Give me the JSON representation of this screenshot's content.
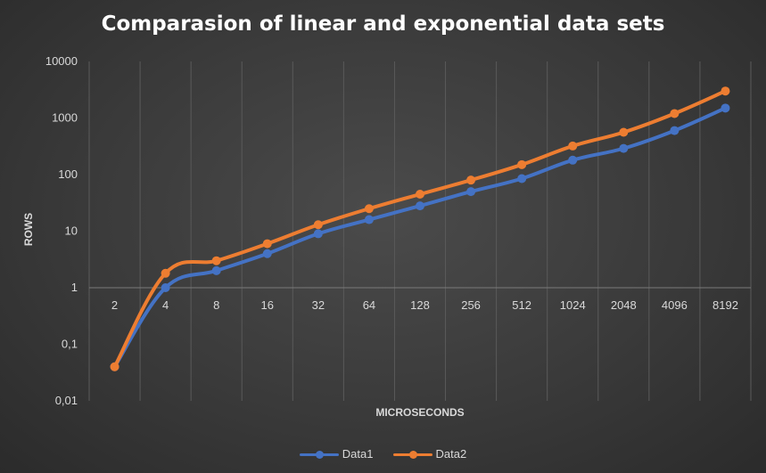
{
  "chart_data": {
    "type": "line",
    "title": "Comparasion of linear and exponential data sets",
    "xlabel": "MICROSECONDS",
    "ylabel": "ROWS",
    "y_scale": "log",
    "ylim": [
      0.01,
      10000
    ],
    "y_tick_labels": [
      "0,01",
      "0,1",
      "1",
      "10",
      "100",
      "1000",
      "10000"
    ],
    "categories": [
      "2",
      "4",
      "8",
      "16",
      "32",
      "64",
      "128",
      "256",
      "512",
      "1024",
      "2048",
      "4096",
      "8192"
    ],
    "series": [
      {
        "name": "Data1",
        "color": "#4472c4",
        "values": [
          0.04,
          1,
          2,
          4,
          9,
          16,
          28,
          50,
          85,
          180,
          290,
          600,
          1500
        ]
      },
      {
        "name": "Data2",
        "color": "#ed7d31",
        "values": [
          0.04,
          1.8,
          3,
          6,
          13,
          25,
          45,
          80,
          150,
          320,
          560,
          1200,
          3000
        ]
      }
    ],
    "grid": {
      "vertical": true,
      "horizontal": false
    },
    "legend_position": "bottom"
  }
}
